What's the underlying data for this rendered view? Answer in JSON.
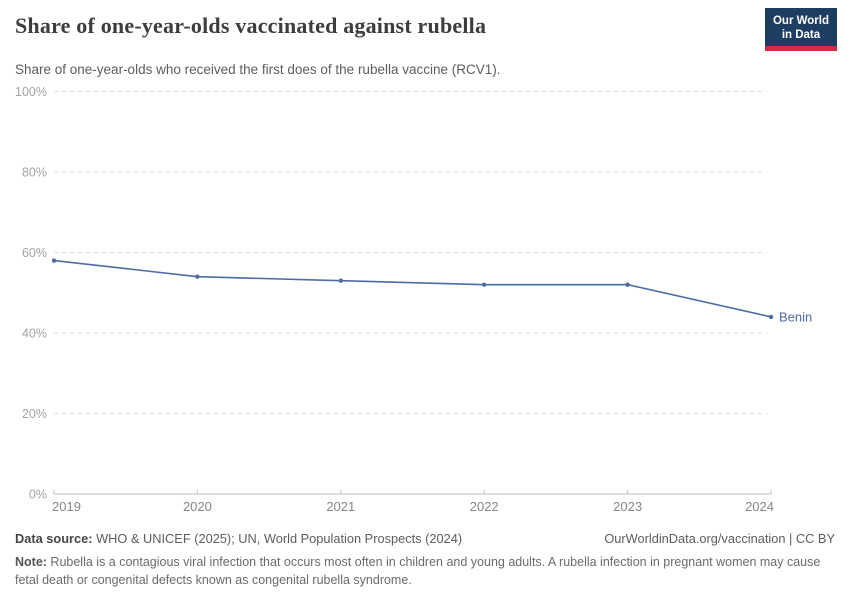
{
  "header": {
    "title": "Share of one-year-olds vaccinated against rubella",
    "subtitle": "Share of one-year-olds who received the first does of the rubella vaccine (RCV1).",
    "logo": {
      "line1": "Our World",
      "line2": "in Data",
      "bg_color": "#1d3d63",
      "accent_color": "#cf2e41"
    }
  },
  "chart_data": {
    "type": "line",
    "title": "Share of one-year-olds vaccinated against rubella",
    "x": [
      2019,
      2020,
      2021,
      2022,
      2023,
      2024
    ],
    "series": [
      {
        "name": "Benin",
        "color": "#4c6da4",
        "values": [
          58,
          54,
          53,
          52,
          52,
          44
        ]
      }
    ],
    "xlabel": "",
    "ylabel": "",
    "ylim": [
      0,
      100
    ],
    "yticks": [
      0,
      20,
      40,
      60,
      80,
      100
    ],
    "ytick_suffix": "%",
    "grid": "horizontal-dashed",
    "legend_position": "end-of-line",
    "end_label": "Benin"
  },
  "footer": {
    "source_label": "Data source:",
    "source_text": " WHO & UNICEF (2025); UN, World Population Prospects (2024)",
    "link_text": "OurWorldinData.org/vaccination",
    "license_separator": " | ",
    "license": "CC BY",
    "note_label": "Note:",
    "note_text": " Rubella is a contagious viral infection that occurs most often in children and young adults. A rubella infection in pregnant women may cause fetal death or congenital defects known as congenital rubella syndrome."
  }
}
